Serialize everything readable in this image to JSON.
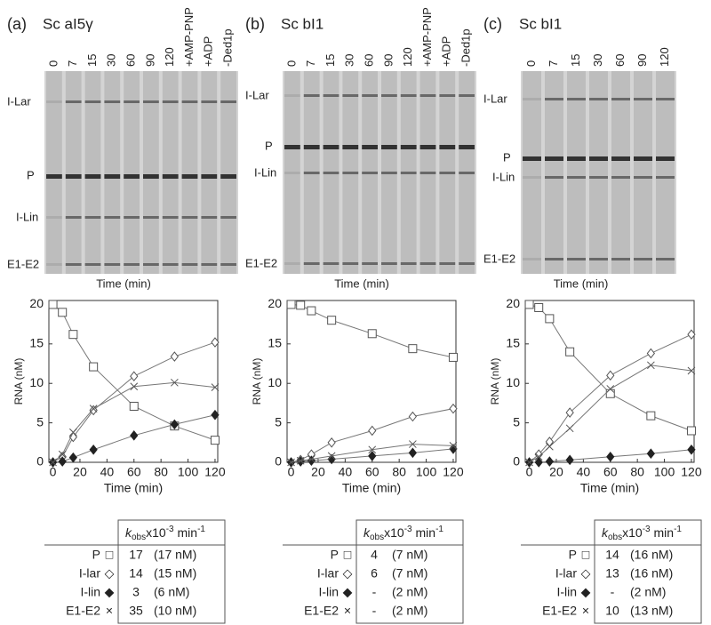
{
  "panels": [
    {
      "label": "(a)",
      "title": "Sc aI5γ",
      "lanes": [
        "0",
        "7",
        "15",
        "30",
        "60",
        "90",
        "120",
        "+AMP-PNP",
        "+ADP",
        "-Ded1p"
      ],
      "bands": [
        "I-Lar",
        "P",
        "I-Lin",
        "E1-E2"
      ],
      "gel_xlabel": "Time (min)",
      "table": {
        "header": [
          "k",
          "obs",
          "x10",
          "-3",
          " min",
          "-1"
        ],
        "rows": [
          [
            "P",
            "□",
            "17",
            "(17 nM)"
          ],
          [
            "I-lar",
            "◇",
            "14",
            "(15 nM)"
          ],
          [
            "I-lin",
            "◆",
            "3",
            "(6 nM)"
          ],
          [
            "E1-E2",
            "×",
            "35",
            "(10 nM)"
          ]
        ]
      }
    },
    {
      "label": "(b)",
      "title": "Sc bI1",
      "lanes": [
        "0",
        "7",
        "15",
        "30",
        "60",
        "90",
        "120",
        "+AMP-PNP",
        "+ADP",
        "-Ded1p"
      ],
      "bands": [
        "I-Lar",
        "P",
        "I-Lin",
        "E1-E2"
      ],
      "gel_xlabel": "Time (min)",
      "table": {
        "header": [
          "k",
          "obs",
          "x10",
          "-3",
          " min",
          "-1"
        ],
        "rows": [
          [
            "P",
            "□",
            "4",
            "(7 nM)"
          ],
          [
            "I-lar",
            "◇",
            "6",
            "(7 nM)"
          ],
          [
            "I-lin",
            "◆",
            "-",
            "(2 nM)"
          ],
          [
            "E1-E2",
            "×",
            "-",
            "(2 nM)"
          ]
        ]
      }
    },
    {
      "label": "(c)",
      "title": "Sc bI1",
      "lanes": [
        "0",
        "7",
        "15",
        "30",
        "60",
        "90",
        "120"
      ],
      "bands": [
        "I-Lar",
        "P",
        "I-Lin",
        "E1-E2"
      ],
      "gel_xlabel": "Time (min)",
      "table": {
        "header": [
          "k",
          "obs",
          "x10",
          "-3",
          " min",
          "-1"
        ],
        "rows": [
          [
            "P",
            "□",
            "14",
            "(16 nM)"
          ],
          [
            "I-lar",
            "◇",
            "13",
            "(16 nM)"
          ],
          [
            "I-lin",
            "◆",
            "-",
            "(2 nM)"
          ],
          [
            "E1-E2",
            "×",
            "10",
            "(13 nM)"
          ]
        ]
      }
    }
  ],
  "chart_data": [
    {
      "type": "line",
      "x_label": "Time (min)",
      "y_label": "RNA (nM)",
      "x": [
        0,
        7,
        15,
        30,
        60,
        90,
        120
      ],
      "xlim": [
        -3,
        122
      ],
      "ylim": [
        0,
        20.5
      ],
      "xticks": [
        0,
        20,
        40,
        60,
        80,
        100,
        120
      ],
      "yticks": [
        0,
        5,
        10,
        15,
        20
      ],
      "series": [
        {
          "name": "P",
          "marker": "square",
          "color": "#555",
          "values": [
            20,
            19,
            16.2,
            12.1,
            7.1,
            4.6,
            2.8
          ]
        },
        {
          "name": "I-lar",
          "marker": "diamond",
          "color": "#555",
          "values": [
            0,
            0.7,
            3.2,
            6.6,
            10.9,
            13.4,
            15.2
          ]
        },
        {
          "name": "I-lin",
          "marker": "filled-diamond",
          "color": "#222",
          "values": [
            0,
            0.1,
            0.6,
            1.6,
            3.4,
            4.8,
            6.0
          ]
        },
        {
          "name": "E1-E2",
          "marker": "cross",
          "color": "#555",
          "values": [
            0,
            1,
            3.8,
            6.8,
            9.6,
            10.1,
            9.5
          ]
        }
      ]
    },
    {
      "type": "line",
      "x_label": "Time (min)",
      "y_label": "RNA (nM)",
      "x": [
        0,
        7,
        15,
        30,
        60,
        90,
        120
      ],
      "xlim": [
        -3,
        122
      ],
      "ylim": [
        0,
        20.5
      ],
      "xticks": [
        0,
        20,
        40,
        60,
        80,
        100,
        120
      ],
      "yticks": [
        0,
        5,
        10,
        15,
        20
      ],
      "series": [
        {
          "name": "P",
          "marker": "square",
          "color": "#555",
          "values": [
            20,
            19.9,
            19.2,
            18,
            16.3,
            14.4,
            13.3
          ]
        },
        {
          "name": "I-lar",
          "marker": "diamond",
          "color": "#555",
          "values": [
            0,
            0.3,
            1,
            2.5,
            4,
            5.8,
            6.8
          ]
        },
        {
          "name": "I-lin",
          "marker": "filled-diamond",
          "color": "#222",
          "values": [
            0,
            0.1,
            0.2,
            0.4,
            0.8,
            1.2,
            1.7
          ]
        },
        {
          "name": "E1-E2",
          "marker": "cross",
          "color": "#555",
          "values": [
            0,
            0.2,
            0.4,
            0.8,
            1.6,
            2.3,
            2.1
          ]
        }
      ]
    },
    {
      "type": "line",
      "x_label": "Time (min)",
      "y_label": "RNA (nM)",
      "x": [
        0,
        7,
        15,
        30,
        60,
        90,
        120
      ],
      "xlim": [
        -3,
        122
      ],
      "ylim": [
        0,
        20.5
      ],
      "xticks": [
        0,
        20,
        40,
        60,
        80,
        100,
        120
      ],
      "yticks": [
        0,
        5,
        10,
        15,
        20
      ],
      "series": [
        {
          "name": "P",
          "marker": "square",
          "color": "#555",
          "values": [
            20,
            19.6,
            18.2,
            14,
            8.7,
            5.9,
            4
          ]
        },
        {
          "name": "I-lar",
          "marker": "diamond",
          "color": "#555",
          "values": [
            0,
            1,
            2.6,
            6.3,
            11,
            13.8,
            16.2
          ]
        },
        {
          "name": "I-lin",
          "marker": "filled-diamond",
          "color": "#222",
          "values": [
            0,
            0,
            0.1,
            0.3,
            0.7,
            1.1,
            1.6
          ]
        },
        {
          "name": "E1-E2",
          "marker": "cross",
          "color": "#555",
          "values": [
            0,
            0.7,
            2,
            4.3,
            9.3,
            12.3,
            11.6
          ]
        }
      ]
    }
  ]
}
